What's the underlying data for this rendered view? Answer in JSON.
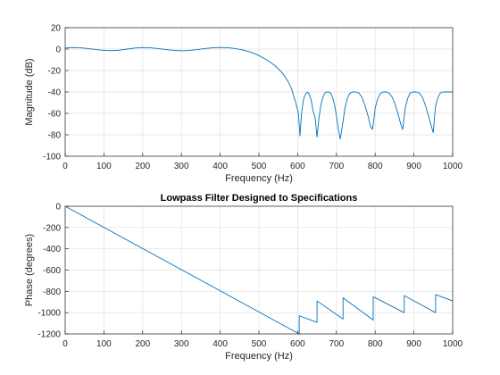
{
  "chart_data": [
    {
      "type": "line",
      "title": "",
      "xlabel": "Frequency (Hz)",
      "ylabel": "Magnitude (dB)",
      "xlim": [
        0,
        1000
      ],
      "ylim": [
        -100,
        20
      ],
      "xticks": [
        0,
        100,
        200,
        300,
        400,
        500,
        600,
        700,
        800,
        900,
        1000
      ],
      "yticks": [
        -100,
        -80,
        -60,
        -40,
        -20,
        0,
        20
      ],
      "grid": true,
      "line_color": "#0072bd",
      "series": [
        {
          "x": [
            0,
            20,
            40,
            60,
            80,
            100,
            120,
            140,
            160,
            180,
            200,
            220,
            240,
            260,
            280,
            300,
            320,
            340,
            360,
            380,
            400,
            420,
            440,
            460,
            480,
            500,
            520,
            540,
            560,
            575,
            585,
            595,
            602,
            606,
            610,
            615,
            620,
            625,
            630,
            635,
            640,
            645,
            650,
            655,
            660,
            665,
            670,
            675,
            680,
            685,
            690,
            695,
            700,
            705,
            710,
            716,
            722,
            728,
            735,
            742,
            750,
            758,
            766,
            774,
            782,
            788,
            793,
            796,
            800,
            806,
            812,
            820,
            828,
            836,
            844,
            852,
            860,
            866,
            871,
            874,
            878,
            884,
            890,
            898,
            906,
            914,
            922,
            930,
            938,
            945,
            950,
            953,
            956,
            962,
            968,
            976,
            984,
            992,
            1000
          ],
          "y": [
            1,
            1.5,
            1.2,
            0.5,
            -0.5,
            -1.2,
            -1.5,
            -1,
            0,
            1,
            1.5,
            1.2,
            0.5,
            -0.5,
            -1.2,
            -1.6,
            -1.3,
            -0.5,
            0.5,
            1.2,
            1.5,
            1.3,
            0.5,
            -1,
            -3,
            -6,
            -10,
            -15,
            -22,
            -30,
            -38,
            -50,
            -60,
            -81,
            -60,
            -47,
            -42,
            -40,
            -42,
            -48,
            -58,
            -64,
            -82,
            -64,
            -52,
            -45,
            -41,
            -40,
            -40,
            -41,
            -45,
            -52,
            -62,
            -75,
            -84,
            -70,
            -55,
            -46,
            -41,
            -40,
            -40,
            -41,
            -45,
            -53,
            -63,
            -72,
            -75,
            -68,
            -55,
            -47,
            -42,
            -40,
            -40,
            -41,
            -45,
            -52,
            -62,
            -70,
            -75,
            -66,
            -54,
            -46,
            -41,
            -40,
            -40,
            -41,
            -45,
            -53,
            -63,
            -72,
            -78,
            -64,
            -53,
            -45,
            -41,
            -40,
            -40,
            -40,
            -40
          ]
        }
      ]
    },
    {
      "type": "line",
      "title": "Lowpass Filter Designed to Specifications",
      "xlabel": "Frequency (Hz)",
      "ylabel": "Phase (degrees)",
      "xlim": [
        0,
        1000
      ],
      "ylim": [
        -1200,
        0
      ],
      "xticks": [
        0,
        100,
        200,
        300,
        400,
        500,
        600,
        700,
        800,
        900,
        1000
      ],
      "yticks": [
        -1200,
        -1000,
        -800,
        -600,
        -400,
        -200,
        0
      ],
      "grid": true,
      "line_color": "#0072bd",
      "series": [
        {
          "x": [
            0,
            604,
            604,
            650,
            650,
            717,
            717,
            795,
            795,
            875,
            875,
            956,
            956,
            1000
          ],
          "y": [
            0,
            -1200,
            -1030,
            -1090,
            -890,
            -1060,
            -860,
            -1070,
            -850,
            -1000,
            -840,
            -1000,
            -830,
            -890
          ]
        }
      ]
    }
  ]
}
